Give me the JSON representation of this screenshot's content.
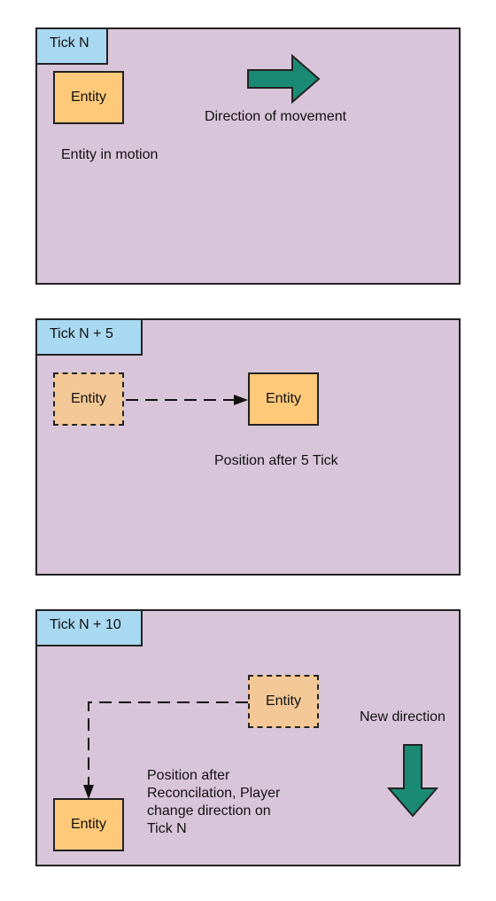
{
  "colors": {
    "panel_bg": "#d9c5d9",
    "tag_bg": "#a9d8f1",
    "entity_fill": "#ffc97a",
    "ghost_fill": "#f3c796",
    "arrow_fill": "#1b8a75"
  },
  "panel1": {
    "tag": "Tick N",
    "entity": "Entity",
    "direction_label": "Direction of movement",
    "caption": "Entity in motion"
  },
  "panel2": {
    "tag": "Tick N + 5",
    "ghost_entity": "Entity",
    "entity": "Entity",
    "caption": "Position after 5 Tick"
  },
  "panel3": {
    "tag": "Tick N + 10",
    "ghost_entity": "Entity",
    "entity": "Entity",
    "direction_label": "New direction",
    "caption_lines": [
      "Position after",
      "Reconcilation, Player",
      "change direction on",
      "Tick N"
    ]
  }
}
